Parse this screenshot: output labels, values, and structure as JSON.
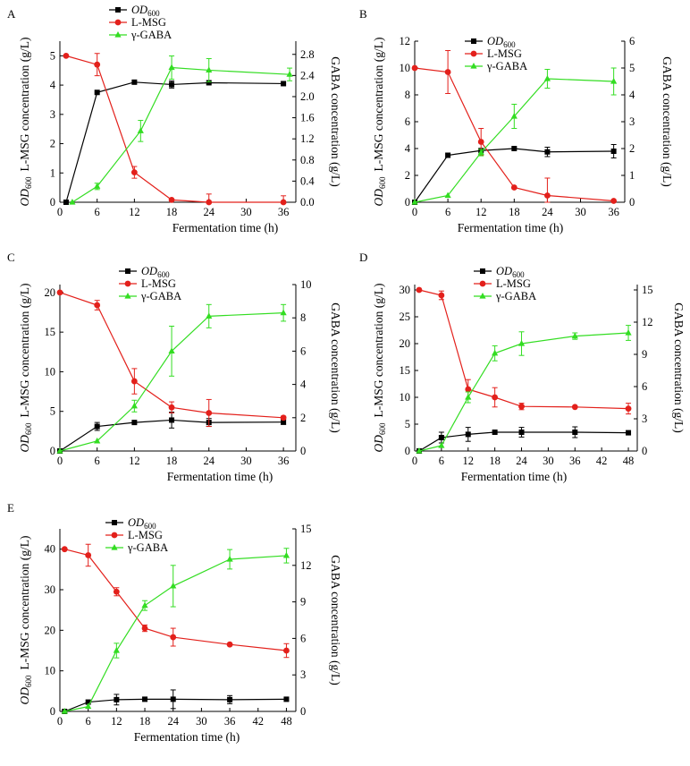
{
  "figure": {
    "background": "#ffffff"
  },
  "chart_data": [
    {
      "panel_label": "A",
      "type": "line",
      "xlabel": "Fermentation time (h)",
      "xticks": [
        0,
        6,
        12,
        18,
        24,
        30,
        36
      ],
      "xlim": [
        0,
        38
      ],
      "ylabel_left": {
        "od_main": "OD",
        "od_sub": "600",
        "msg": "L-MSG concentration (g/L)"
      },
      "yticks_left": [
        0,
        1,
        2,
        3,
        4,
        5
      ],
      "ylim_left": [
        0,
        5.5
      ],
      "ylabel_right": "GABA concentration (g/L)",
      "yticks_right": [
        "0.0",
        "0.4",
        "0.8",
        "1.2",
        "1.6",
        "2.0",
        "2.4",
        "2.8"
      ],
      "ylim_right": [
        0,
        3.05
      ],
      "legend": [
        {
          "main": "OD",
          "sub": "600"
        },
        {
          "main": "L-MSG"
        },
        {
          "main": "γ-GABA"
        }
      ],
      "series": [
        {
          "name": "OD600",
          "axis": "left",
          "color": "#000000",
          "marker": "square",
          "x": [
            1,
            6,
            12,
            18,
            24,
            36
          ],
          "y": [
            0,
            3.75,
            4.1,
            4.02,
            4.08,
            4.05
          ],
          "err": [
            0,
            0,
            0,
            0.12,
            0,
            0
          ]
        },
        {
          "name": "L-MSG",
          "axis": "left",
          "color": "#e3201b",
          "marker": "circle",
          "x": [
            1,
            6,
            12,
            18,
            24,
            36
          ],
          "y": [
            5.0,
            4.7,
            1.02,
            0.08,
            0.0,
            0.0
          ],
          "err": [
            0,
            0.38,
            0.2,
            0,
            0.28,
            0.22
          ]
        },
        {
          "name": "γ-GABA",
          "axis": "right",
          "color": "#33dd22",
          "marker": "triangle",
          "x": [
            2,
            6,
            13,
            18,
            24,
            37
          ],
          "y": [
            0.0,
            0.3,
            1.35,
            2.55,
            2.5,
            2.42
          ],
          "err": [
            0,
            0.06,
            0.2,
            0.22,
            0.22,
            0.12
          ]
        }
      ]
    },
    {
      "panel_label": "B",
      "type": "line",
      "xlabel": "Fermentation time (h)",
      "xticks": [
        0,
        6,
        12,
        18,
        24,
        30,
        36
      ],
      "xlim": [
        0,
        38
      ],
      "ylabel_left": {
        "od_main": "OD",
        "od_sub": "600",
        "msg": "L-MSG concentration (g/L)"
      },
      "yticks_left": [
        0,
        2,
        4,
        6,
        8,
        10,
        12
      ],
      "ylim_left": [
        0,
        12
      ],
      "ylabel_right": "GABA concentration (g/L)",
      "yticks_right": [
        "0",
        "1",
        "2",
        "3",
        "4",
        "5",
        "6"
      ],
      "ylim_right": [
        0,
        6
      ],
      "legend": [
        {
          "main": "OD",
          "sub": "600"
        },
        {
          "main": "L-MSG"
        },
        {
          "main": "γ-GABA"
        }
      ],
      "series": [
        {
          "name": "OD600",
          "axis": "left",
          "color": "#000000",
          "marker": "square",
          "x": [
            0,
            6,
            12,
            18,
            24,
            36
          ],
          "y": [
            0,
            3.5,
            3.85,
            4.0,
            3.75,
            3.8
          ],
          "err": [
            0,
            0,
            0,
            0,
            0.35,
            0.5
          ]
        },
        {
          "name": "L-MSG",
          "axis": "left",
          "color": "#e3201b",
          "marker": "circle",
          "x": [
            0,
            6,
            12,
            18,
            24,
            36
          ],
          "y": [
            10.0,
            9.7,
            4.5,
            1.1,
            0.5,
            0.1
          ],
          "err": [
            0,
            1.6,
            1.0,
            0,
            1.3,
            0
          ]
        },
        {
          "name": "γ-GABA",
          "axis": "right",
          "color": "#33dd22",
          "marker": "triangle",
          "x": [
            0,
            6,
            12,
            18,
            24,
            36
          ],
          "y": [
            0,
            0.25,
            1.85,
            3.2,
            4.6,
            4.5
          ],
          "err": [
            0,
            0,
            0.12,
            0.45,
            0.35,
            0.5
          ]
        }
      ]
    },
    {
      "panel_label": "C",
      "type": "line",
      "xlabel": "Fermentation time (h)",
      "xticks": [
        0,
        6,
        12,
        18,
        24,
        30,
        36
      ],
      "xlim": [
        0,
        38
      ],
      "ylabel_left": {
        "od_main": "OD",
        "od_sub": "600",
        "msg": "L-MSG concentration (g/L)"
      },
      "yticks_left": [
        0,
        5,
        10,
        15,
        20
      ],
      "ylim_left": [
        0,
        21
      ],
      "ylabel_right": "GABA concentration (g/L)",
      "yticks_right": [
        "0",
        "2",
        "4",
        "6",
        "8",
        "10"
      ],
      "ylim_right": [
        0,
        10
      ],
      "legend": [
        {
          "main": "OD",
          "sub": "600"
        },
        {
          "main": "L-MSG"
        },
        {
          "main": "γ-GABA"
        }
      ],
      "series": [
        {
          "name": "OD600",
          "axis": "left",
          "color": "#000000",
          "marker": "square",
          "x": [
            0,
            6,
            12,
            18,
            24,
            36
          ],
          "y": [
            0,
            3.1,
            3.6,
            3.9,
            3.6,
            3.65
          ],
          "err": [
            0,
            0.5,
            0,
            1.0,
            0.5,
            0.3
          ]
        },
        {
          "name": "L-MSG",
          "axis": "left",
          "color": "#e3201b",
          "marker": "circle",
          "x": [
            0,
            6,
            12,
            18,
            24,
            36
          ],
          "y": [
            20.0,
            18.4,
            8.8,
            5.5,
            4.8,
            4.2
          ],
          "err": [
            0,
            0.6,
            1.6,
            0.7,
            1.7,
            0.2
          ]
        },
        {
          "name": "γ-GABA",
          "axis": "right",
          "color": "#33dd22",
          "marker": "triangle",
          "x": [
            0,
            6,
            12,
            18,
            24,
            36
          ],
          "y": [
            0,
            0.6,
            2.7,
            6.0,
            8.1,
            8.3
          ],
          "err": [
            0,
            0,
            0.35,
            1.5,
            0.7,
            0.5
          ]
        }
      ]
    },
    {
      "panel_label": "D",
      "type": "line",
      "xlabel": "Fermentation time (h)",
      "xticks": [
        0,
        6,
        12,
        18,
        24,
        30,
        36,
        42,
        48
      ],
      "xlim": [
        0,
        50
      ],
      "ylabel_left": {
        "od_main": "OD",
        "od_sub": "600",
        "msg": "L-MSG concentration (g/L)"
      },
      "yticks_left": [
        0,
        5,
        10,
        15,
        20,
        25,
        30
      ],
      "ylim_left": [
        0,
        31
      ],
      "ylabel_right": "GABA concentration (g/L)",
      "yticks_right": [
        "0",
        "3",
        "6",
        "9",
        "12",
        "15"
      ],
      "ylim_right": [
        0,
        15.5
      ],
      "legend": [
        {
          "main": "OD",
          "sub": "600"
        },
        {
          "main": "L-MSG"
        },
        {
          "main": "γ-GABA"
        }
      ],
      "series": [
        {
          "name": "OD600",
          "axis": "left",
          "color": "#000000",
          "marker": "square",
          "x": [
            1,
            6,
            12,
            18,
            24,
            36,
            48
          ],
          "y": [
            0,
            2.5,
            3.1,
            3.5,
            3.5,
            3.5,
            3.4
          ],
          "err": [
            0,
            1.0,
            1.3,
            0,
            0.9,
            1.0,
            0
          ]
        },
        {
          "name": "L-MSG",
          "axis": "left",
          "color": "#e3201b",
          "marker": "circle",
          "x": [
            1,
            6,
            12,
            18,
            24,
            36,
            48
          ],
          "y": [
            30.0,
            29.0,
            11.5,
            10.0,
            8.3,
            8.2,
            7.9
          ],
          "err": [
            0,
            0.8,
            1.8,
            1.8,
            0.6,
            0,
            1.0
          ]
        },
        {
          "name": "γ-GABA",
          "axis": "right",
          "color": "#33dd22",
          "marker": "triangle",
          "x": [
            1,
            6,
            12,
            18,
            24,
            36,
            48
          ],
          "y": [
            0,
            0.5,
            5.0,
            9.1,
            10.0,
            10.7,
            11.0
          ],
          "err": [
            0,
            0,
            0.5,
            0.7,
            1.1,
            0.3,
            0.7
          ]
        }
      ]
    },
    {
      "panel_label": "E",
      "type": "line",
      "xlabel": "Fermentation time (h)",
      "xticks": [
        0,
        6,
        12,
        18,
        24,
        30,
        36,
        42,
        48
      ],
      "xlim": [
        0,
        50
      ],
      "ylabel_left": {
        "od_main": "OD",
        "od_sub": "600",
        "msg": "L-MSG concentration (g/L)"
      },
      "yticks_left": [
        0,
        10,
        20,
        30,
        40
      ],
      "ylim_left": [
        0,
        45
      ],
      "ylabel_right": "GABA concentration (g/L)",
      "yticks_right": [
        "0",
        "3",
        "6",
        "9",
        "12",
        "15"
      ],
      "ylim_right": [
        0,
        15
      ],
      "legend": [
        {
          "main": "OD",
          "sub": "600"
        },
        {
          "main": "L-MSG"
        },
        {
          "main": "γ-GABA"
        }
      ],
      "series": [
        {
          "name": "OD600",
          "axis": "left",
          "color": "#000000",
          "marker": "square",
          "x": [
            1,
            6,
            12,
            18,
            24,
            36,
            48
          ],
          "y": [
            0,
            2.3,
            2.9,
            3.0,
            3.0,
            2.9,
            3.0
          ],
          "err": [
            0,
            0,
            1.3,
            0,
            2.3,
            1.0,
            0
          ]
        },
        {
          "name": "L-MSG",
          "axis": "left",
          "color": "#e3201b",
          "marker": "circle",
          "x": [
            1,
            6,
            12,
            18,
            24,
            36,
            48
          ],
          "y": [
            40.0,
            38.5,
            29.5,
            20.5,
            18.3,
            16.5,
            15.0
          ],
          "err": [
            0,
            2.7,
            1.0,
            0.8,
            2.2,
            0,
            1.7
          ]
        },
        {
          "name": "γ-GABA",
          "axis": "right",
          "color": "#33dd22",
          "marker": "triangle",
          "x": [
            1,
            6,
            12,
            18,
            24,
            36,
            48
          ],
          "y": [
            0,
            0.4,
            5.0,
            8.7,
            10.3,
            12.5,
            12.8
          ],
          "err": [
            0,
            0,
            0.6,
            0.4,
            1.7,
            0.8,
            0.6
          ]
        }
      ]
    }
  ]
}
